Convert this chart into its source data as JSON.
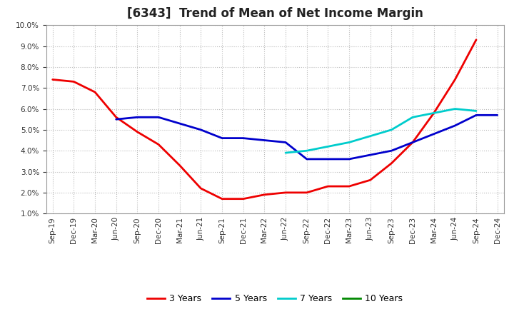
{
  "title": "[6343]  Trend of Mean of Net Income Margin",
  "x_labels": [
    "Sep-19",
    "Dec-19",
    "Mar-20",
    "Jun-20",
    "Sep-20",
    "Dec-20",
    "Mar-21",
    "Jun-21",
    "Sep-21",
    "Dec-21",
    "Mar-22",
    "Jun-22",
    "Sep-22",
    "Dec-22",
    "Mar-23",
    "Jun-23",
    "Sep-23",
    "Dec-23",
    "Mar-24",
    "Jun-24",
    "Sep-24",
    "Dec-24"
  ],
  "ylim": [
    0.01,
    0.1
  ],
  "yticks": [
    0.01,
    0.02,
    0.03,
    0.04,
    0.05,
    0.06,
    0.07,
    0.08,
    0.09,
    0.1
  ],
  "series": {
    "3 Years": {
      "color": "#EE0000",
      "data": [
        0.074,
        0.073,
        0.068,
        0.056,
        0.049,
        0.043,
        0.033,
        0.022,
        0.017,
        0.017,
        0.019,
        0.02,
        0.02,
        0.023,
        0.023,
        0.026,
        0.034,
        0.044,
        0.058,
        0.074,
        0.093,
        null
      ]
    },
    "5 Years": {
      "color": "#0000CC",
      "data": [
        null,
        null,
        null,
        0.055,
        0.056,
        0.056,
        0.053,
        0.05,
        0.046,
        0.046,
        0.045,
        0.044,
        0.036,
        0.036,
        0.036,
        0.038,
        0.04,
        0.044,
        0.048,
        0.052,
        0.057,
        0.057
      ]
    },
    "7 Years": {
      "color": "#00CCCC",
      "data": [
        null,
        null,
        null,
        null,
        null,
        null,
        null,
        null,
        null,
        null,
        null,
        0.039,
        0.04,
        0.042,
        0.044,
        0.047,
        0.05,
        0.056,
        0.058,
        0.06,
        0.059,
        null
      ]
    },
    "10 Years": {
      "color": "#008800",
      "data": [
        null,
        null,
        null,
        null,
        null,
        null,
        null,
        null,
        null,
        null,
        null,
        null,
        null,
        null,
        null,
        null,
        null,
        null,
        null,
        null,
        null,
        null
      ]
    }
  },
  "background_color": "#FFFFFF",
  "grid_color": "#BBBBBB",
  "title_fontsize": 12,
  "tick_fontsize": 7.5,
  "legend_fontsize": 9,
  "line_width": 2.0
}
